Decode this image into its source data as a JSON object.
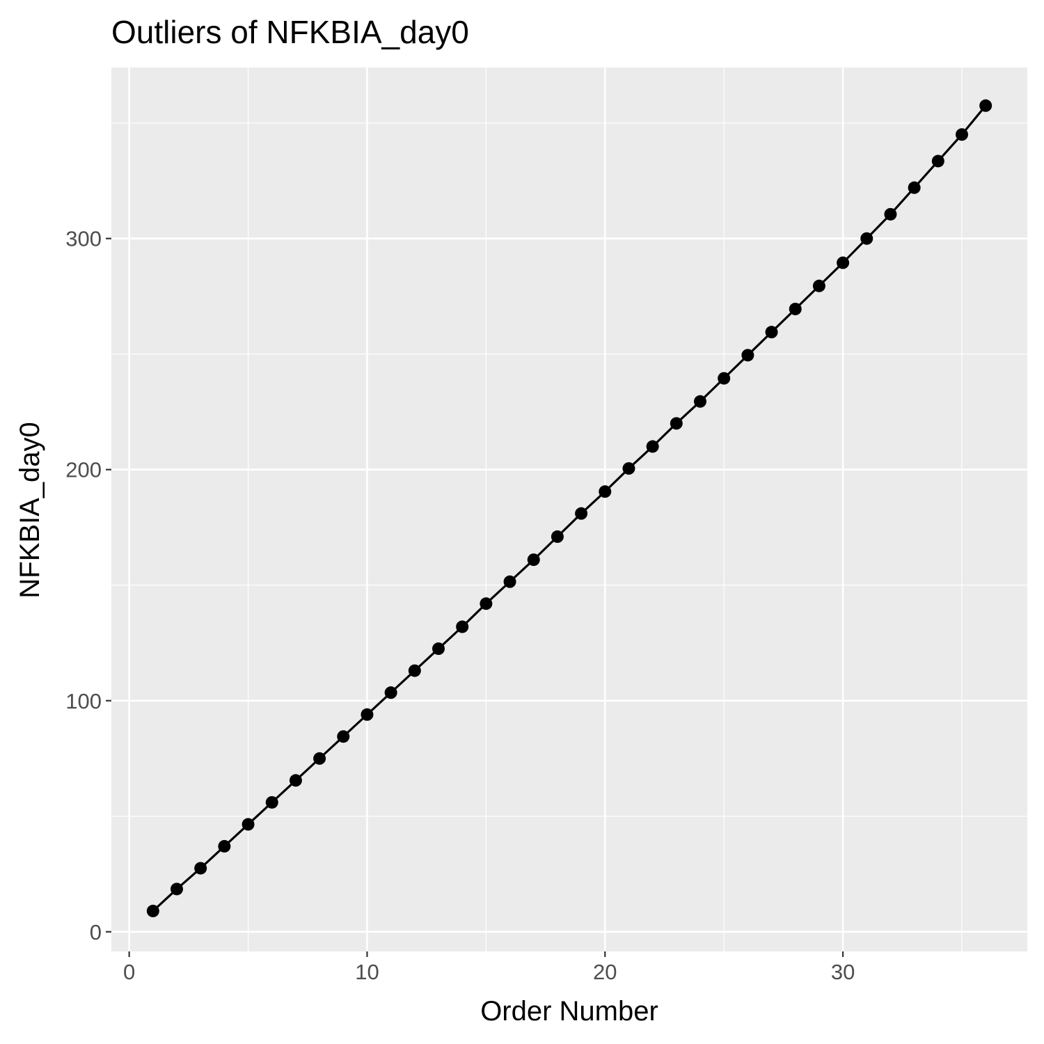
{
  "chart_data": {
    "type": "line",
    "title": "Outliers of NFKBIA_day0",
    "xlabel": "Order Number",
    "ylabel": "NFKBIA_day0",
    "xlim": [
      -0.75,
      37.75
    ],
    "ylim": [
      -8.5,
      374
    ],
    "x_ticks": [
      0,
      10,
      20,
      30
    ],
    "y_ticks": [
      0,
      100,
      200,
      300
    ],
    "x_minor": [
      5,
      15,
      25,
      35
    ],
    "y_minor": [
      50,
      150,
      250,
      350
    ],
    "grid": true,
    "legend": "none",
    "series": [
      {
        "x": [
          1,
          2,
          3,
          4,
          5,
          6,
          7,
          8,
          9,
          10,
          11,
          12,
          13,
          14,
          15,
          16,
          17,
          18,
          19,
          20,
          21,
          22,
          23,
          24,
          25,
          26,
          27,
          28,
          29,
          30,
          31,
          32,
          33,
          34,
          35,
          36
        ],
        "y": [
          9,
          18.5,
          27.5,
          37,
          46.5,
          56,
          65.5,
          75,
          84.5,
          94,
          103.5,
          113,
          122.5,
          132,
          142,
          151.5,
          161,
          171,
          181,
          190.5,
          200.5,
          210,
          220,
          229.5,
          239.5,
          249.5,
          259.5,
          269.5,
          279.5,
          289.5,
          300,
          310.5,
          322,
          333.5,
          345,
          357.5
        ],
        "color": "#000000"
      }
    ],
    "colors": {
      "panel": "#ebebeb",
      "grid": "#ffffff",
      "line": "#000000"
    }
  }
}
